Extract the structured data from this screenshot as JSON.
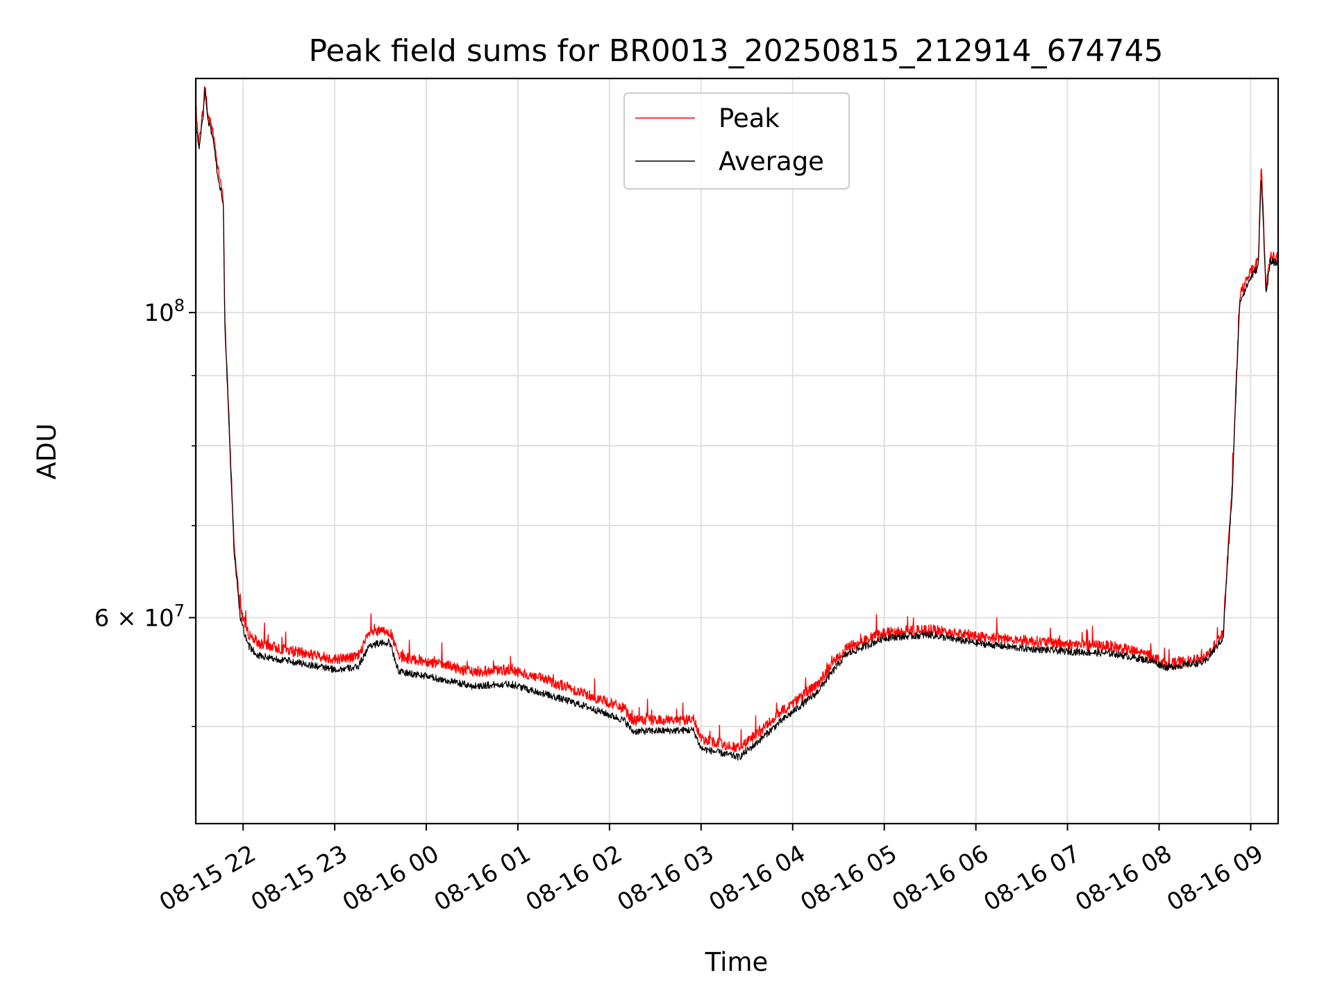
{
  "chart_data": {
    "type": "line",
    "title": "Peak field sums for BR0013_20250815_212914_674745",
    "xlabel": "Time",
    "ylabel": "ADU",
    "yscale": "log",
    "grid": true,
    "legend_position": "top-center",
    "xlim": [
      "2025-08-15 21:29",
      "2025-08-16 09:18"
    ],
    "ylim": [
      42500000,
      148000000
    ],
    "x_ticks": [
      "08-15 22",
      "08-15 23",
      "08-16 00",
      "08-16 01",
      "08-16 02",
      "08-16 03",
      "08-16 04",
      "08-16 05",
      "08-16 06",
      "08-16 07",
      "08-16 08",
      "08-16 09"
    ],
    "y_ticks": [
      {
        "value": 100000000,
        "base": "10",
        "exp": "8"
      },
      {
        "value": 60000000,
        "base": "6 × 10",
        "exp": "7"
      }
    ],
    "y_minor_ticks": [
      50000000,
      70000000,
      80000000,
      90000000
    ],
    "series": [
      {
        "name": "Peak",
        "color": "#ff0000",
        "points": [
          [
            "2025-08-15 21:29",
            139000000
          ],
          [
            "2025-08-15 21:31",
            133000000
          ],
          [
            "2025-08-15 21:34",
            141000000
          ],
          [
            "2025-08-15 21:35",
            146500000
          ],
          [
            "2025-08-15 21:37",
            139000000
          ],
          [
            "2025-08-15 21:40",
            136000000
          ],
          [
            "2025-08-15 21:43",
            128000000
          ],
          [
            "2025-08-15 21:47",
            121000000
          ],
          [
            "2025-08-15 21:48",
            99000000
          ],
          [
            "2025-08-15 21:51",
            82000000
          ],
          [
            "2025-08-15 21:54",
            68000000
          ],
          [
            "2025-08-15 21:58",
            61000000
          ],
          [
            "2025-08-15 22:03",
            58500000
          ],
          [
            "2025-08-15 22:10",
            57500000
          ],
          [
            "2025-08-15 22:30",
            56800000
          ],
          [
            "2025-08-15 23:00",
            56000000
          ],
          [
            "2025-08-15 23:15",
            56200000
          ],
          [
            "2025-08-15 23:23",
            58500000
          ],
          [
            "2025-08-15 23:36",
            58700000
          ],
          [
            "2025-08-15 23:42",
            56200000
          ],
          [
            "2025-08-16 00:00",
            55800000
          ],
          [
            "2025-08-16 00:30",
            54800000
          ],
          [
            "2025-08-16 00:55",
            55000000
          ],
          [
            "2025-08-16 01:20",
            54000000
          ],
          [
            "2025-08-16 01:45",
            52800000
          ],
          [
            "2025-08-16 02:10",
            51500000
          ],
          [
            "2025-08-16 02:15",
            50500000
          ],
          [
            "2025-08-16 02:55",
            50600000
          ],
          [
            "2025-08-16 03:00",
            49000000
          ],
          [
            "2025-08-16 03:25",
            48200000
          ],
          [
            "2025-08-16 03:35",
            49200000
          ],
          [
            "2025-08-16 03:50",
            51000000
          ],
          [
            "2025-08-16 04:15",
            53500000
          ],
          [
            "2025-08-16 04:35",
            57000000
          ],
          [
            "2025-08-16 05:00",
            58500000
          ],
          [
            "2025-08-16 05:30",
            58800000
          ],
          [
            "2025-08-16 06:00",
            58200000
          ],
          [
            "2025-08-16 06:30",
            57800000
          ],
          [
            "2025-08-16 07:00",
            57400000
          ],
          [
            "2025-08-16 07:30",
            57200000
          ],
          [
            "2025-08-16 07:55",
            56300000
          ],
          [
            "2025-08-16 08:05",
            55500000
          ],
          [
            "2025-08-16 08:30",
            56000000
          ],
          [
            "2025-08-16 08:42",
            58500000
          ],
          [
            "2025-08-16 08:48",
            75000000
          ],
          [
            "2025-08-16 08:53",
            103000000
          ],
          [
            "2025-08-16 09:00",
            107000000
          ],
          [
            "2025-08-16 09:05",
            109000000
          ],
          [
            "2025-08-16 09:07",
            128000000
          ],
          [
            "2025-08-16 09:10",
            104000000
          ],
          [
            "2025-08-16 09:13",
            110000000
          ],
          [
            "2025-08-16 09:18",
            109500000
          ]
        ]
      },
      {
        "name": "Average",
        "color": "#000000",
        "points": [
          [
            "2025-08-15 21:29",
            137500000
          ],
          [
            "2025-08-15 21:31",
            131500000
          ],
          [
            "2025-08-15 21:34",
            139500000
          ],
          [
            "2025-08-15 21:35",
            145000000
          ],
          [
            "2025-08-15 21:37",
            137500000
          ],
          [
            "2025-08-15 21:40",
            134500000
          ],
          [
            "2025-08-15 21:43",
            126500000
          ],
          [
            "2025-08-15 21:47",
            119800000
          ],
          [
            "2025-08-15 21:48",
            98000000
          ],
          [
            "2025-08-15 21:51",
            81000000
          ],
          [
            "2025-08-15 21:54",
            67200000
          ],
          [
            "2025-08-15 21:58",
            60000000
          ],
          [
            "2025-08-15 22:03",
            57300000
          ],
          [
            "2025-08-15 22:10",
            56300000
          ],
          [
            "2025-08-15 22:30",
            55800000
          ],
          [
            "2025-08-15 23:00",
            55000000
          ],
          [
            "2025-08-15 23:15",
            55200000
          ],
          [
            "2025-08-15 23:23",
            57300000
          ],
          [
            "2025-08-15 23:36",
            57600000
          ],
          [
            "2025-08-15 23:42",
            54800000
          ],
          [
            "2025-08-16 00:00",
            54400000
          ],
          [
            "2025-08-16 00:30",
            53500000
          ],
          [
            "2025-08-16 00:55",
            53700000
          ],
          [
            "2025-08-16 01:20",
            52700000
          ],
          [
            "2025-08-16 01:45",
            51700000
          ],
          [
            "2025-08-16 02:10",
            50500000
          ],
          [
            "2025-08-16 02:15",
            49600000
          ],
          [
            "2025-08-16 02:55",
            49700000
          ],
          [
            "2025-08-16 03:00",
            48200000
          ],
          [
            "2025-08-16 03:25",
            47500000
          ],
          [
            "2025-08-16 03:35",
            48500000
          ],
          [
            "2025-08-16 03:50",
            50200000
          ],
          [
            "2025-08-16 04:15",
            52800000
          ],
          [
            "2025-08-16 04:35",
            56400000
          ],
          [
            "2025-08-16 05:00",
            58000000
          ],
          [
            "2025-08-16 05:30",
            58300000
          ],
          [
            "2025-08-16 06:00",
            57500000
          ],
          [
            "2025-08-16 06:30",
            57000000
          ],
          [
            "2025-08-16 07:00",
            56700000
          ],
          [
            "2025-08-16 07:30",
            56500000
          ],
          [
            "2025-08-16 07:55",
            55800000
          ],
          [
            "2025-08-16 08:05",
            55200000
          ],
          [
            "2025-08-16 08:30",
            55700000
          ],
          [
            "2025-08-16 08:42",
            58000000
          ],
          [
            "2025-08-16 08:48",
            74000000
          ],
          [
            "2025-08-16 08:53",
            102000000
          ],
          [
            "2025-08-16 09:00",
            106000000
          ],
          [
            "2025-08-16 09:05",
            108000000
          ],
          [
            "2025-08-16 09:07",
            126000000
          ],
          [
            "2025-08-16 09:10",
            103000000
          ],
          [
            "2025-08-16 09:13",
            109000000
          ],
          [
            "2025-08-16 09:18",
            108500000
          ]
        ]
      }
    ]
  }
}
